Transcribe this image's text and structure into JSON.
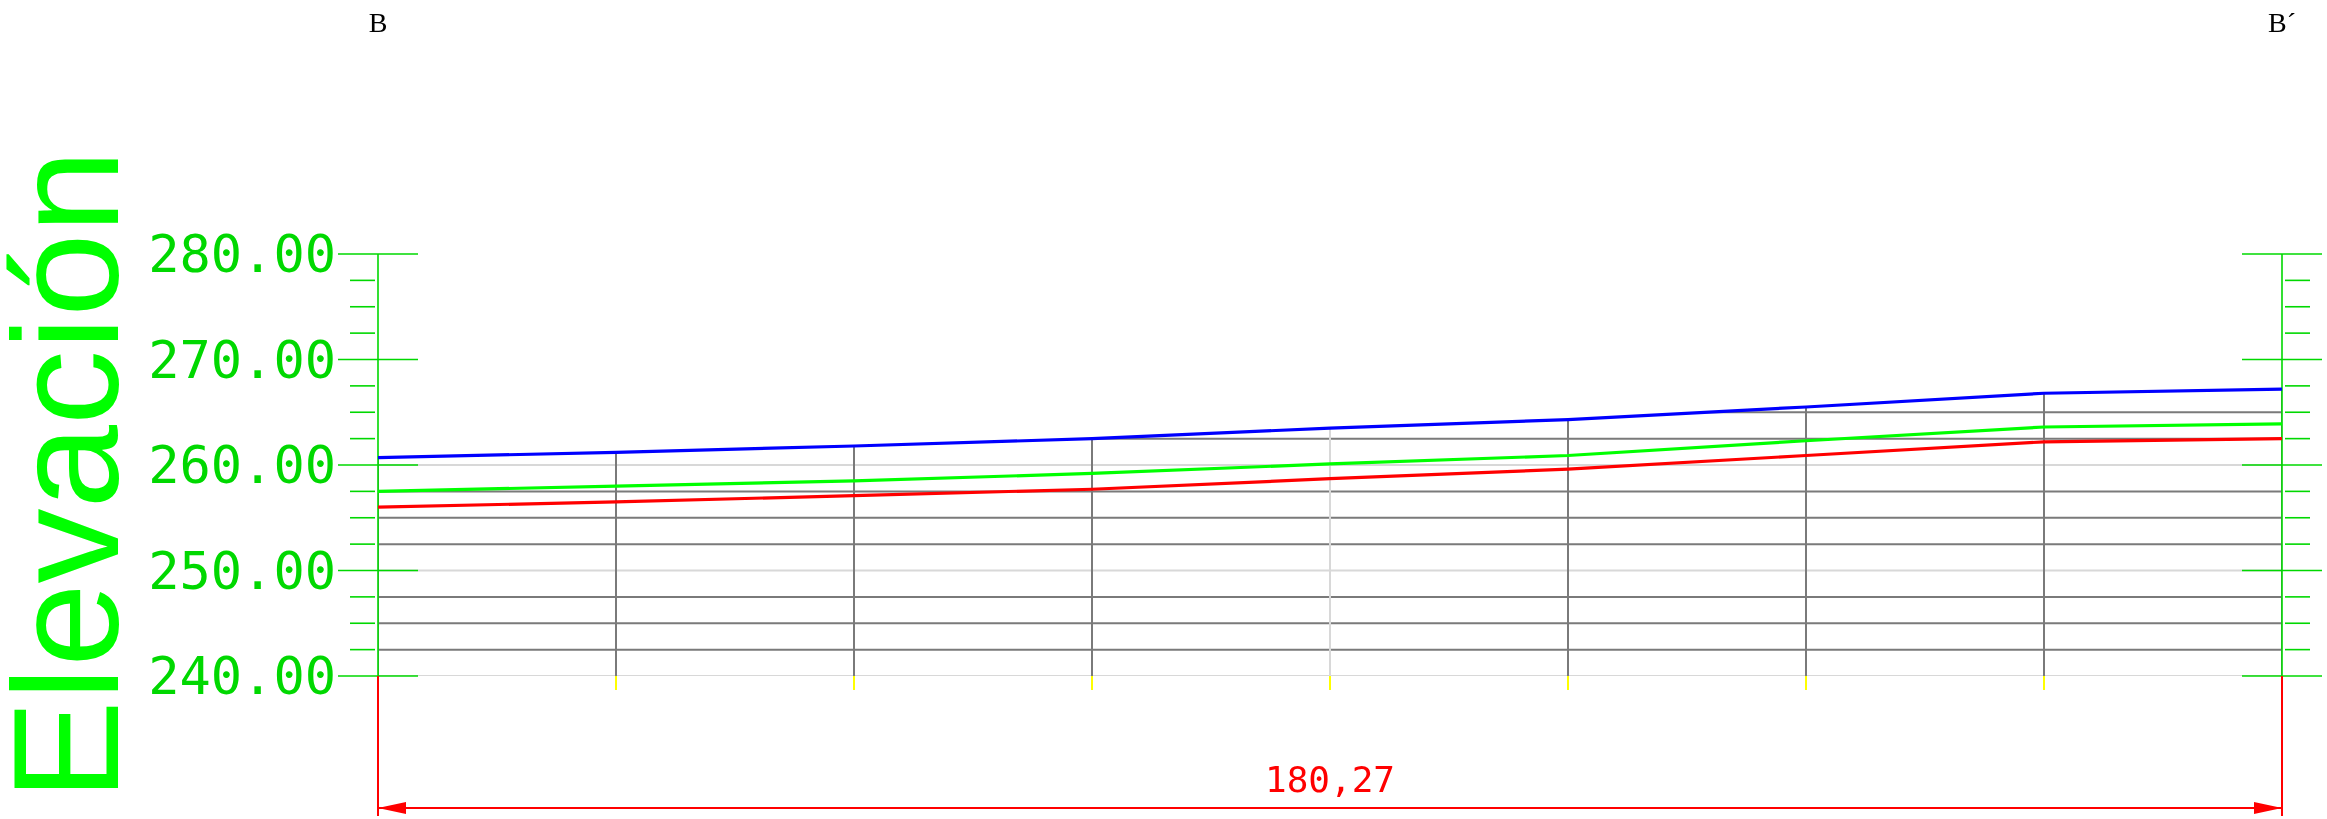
{
  "chart_data": {
    "type": "line",
    "ylabel": "Elevación",
    "annotations": [
      "B",
      "B´",
      "180,27"
    ],
    "categories": [
      null,
      null,
      null,
      null,
      null,
      null,
      null,
      null,
      null
    ],
    "ylim": [
      240,
      280
    ],
    "yticks": [
      {
        "value": 240,
        "label": "240.00"
      },
      {
        "value": 250,
        "label": "250.00"
      },
      {
        "value": 260,
        "label": "260.00"
      },
      {
        "value": 270,
        "label": "270.00"
      },
      {
        "value": 280,
        "label": "280.00"
      }
    ],
    "grid": true,
    "marker": "none",
    "line_style": "solid",
    "series": [
      {
        "color": "#0000ff",
        "values": [
          260.7,
          261.2,
          261.8,
          262.5,
          263.5,
          264.3,
          265.5,
          266.8,
          267.2
        ]
      },
      {
        "color": "#00ff00",
        "values": [
          257.5,
          258.0,
          258.5,
          259.2,
          260.1,
          260.9,
          262.3,
          263.6,
          263.9
        ]
      },
      {
        "color": "#ff0000",
        "values": [
          256.0,
          256.5,
          257.1,
          257.7,
          258.7,
          259.6,
          260.9,
          262.2,
          262.5
        ]
      }
    ]
  }
}
